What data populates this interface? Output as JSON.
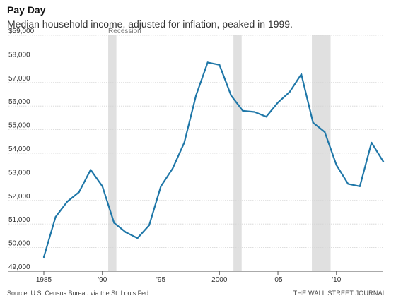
{
  "header": {
    "title": "Pay Day",
    "subtitle": "Median household income, adjusted for inflation, peaked in 1999."
  },
  "footer": {
    "source": "Source: U.S. Census Bureau via the St. Louis Fed",
    "credit": "THE WALL STREET JOURNAL"
  },
  "colors": {
    "line": "#1f77a8",
    "recession": "#e0e0e0",
    "grid": "#d4d4d4",
    "axis": "#555555"
  },
  "chart_data": {
    "type": "line",
    "title": "Pay Day",
    "subtitle": "Median household income, adjusted for inflation, peaked in 1999.",
    "xlabel": "",
    "ylabel": "",
    "xlim": [
      1985,
      2014
    ],
    "ylim": [
      49000,
      59000
    ],
    "x_ticks": [
      1985,
      1990,
      1995,
      2000,
      2005,
      2010
    ],
    "x_tick_labels": [
      "1985",
      "'90",
      "'95",
      "2000",
      "'05",
      "'10"
    ],
    "y_ticks": [
      49000,
      50000,
      51000,
      52000,
      53000,
      54000,
      55000,
      56000,
      57000,
      58000,
      59000
    ],
    "y_tick_labels": [
      "49,000",
      "50,000",
      "51,000",
      "52,000",
      "53,000",
      "54,000",
      "55,000",
      "56,000",
      "57,000",
      "58,000",
      "$59,000"
    ],
    "grid": true,
    "annotation": "Recession",
    "recessions": [
      [
        1990.5,
        1991.2
      ],
      [
        2001.2,
        2001.9
      ],
      [
        2007.9,
        2009.5
      ]
    ],
    "series": [
      {
        "x": [
          1985,
          1986,
          1987,
          1988,
          1989,
          1990,
          1991,
          1992,
          1993,
          1994,
          1995,
          1996,
          1997,
          1998,
          1999,
          2000,
          2001,
          2002,
          2003,
          2004,
          2005,
          2006,
          2007,
          2008,
          2009,
          2010,
          2011,
          2012,
          2013,
          2014
        ],
        "values": [
          49600,
          51300,
          51950,
          52350,
          53300,
          52600,
          51050,
          50650,
          50400,
          50950,
          52600,
          53350,
          54450,
          56450,
          57850,
          57750,
          56450,
          55800,
          55750,
          55550,
          56150,
          56600,
          57350,
          55300,
          54900,
          53500,
          52700,
          52600,
          54450,
          53650
        ]
      }
    ]
  }
}
